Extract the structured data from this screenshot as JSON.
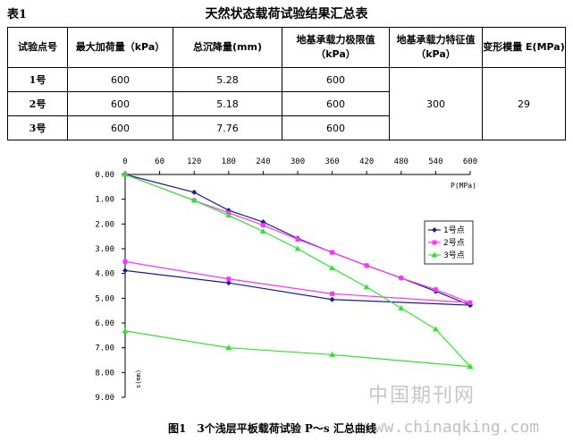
{
  "table": {
    "label": "表1",
    "title": "天然状态载荷试验结果汇总表",
    "headers": [
      "试验点号",
      "最大加荷量（kPa）",
      "总沉降量(mm)",
      "地基承载力极限值（kPa）",
      "地基承载力特征值（kPa）",
      "变形模量 E(MPa)"
    ],
    "rows": [
      {
        "point": "1号",
        "max_load": "600",
        "settlement": "5.28",
        "ultimate": "600"
      },
      {
        "point": "2号",
        "max_load": "600",
        "settlement": "5.18",
        "ultimate": "600"
      },
      {
        "point": "3号",
        "max_load": "600",
        "settlement": "7.76",
        "ultimate": "600"
      }
    ],
    "characteristic_value": "300",
    "deformation_modulus": "29"
  },
  "figure_caption": "图1　3个浅层平板载荷试验 P～s 汇总曲线",
  "watermark": {
    "text": "中国期刊网",
    "url": "www.chinaqking.com"
  },
  "chart_data": {
    "type": "line",
    "xlabel": "P(MPa)",
    "ylabel": "s(mm)",
    "x_axis_position": "top",
    "y_inverted": true,
    "xlim": [
      0,
      600
    ],
    "ylim": [
      0,
      9
    ],
    "xticks": [
      0,
      60,
      120,
      180,
      240,
      300,
      360,
      420,
      480,
      540,
      600
    ],
    "yticks": [
      "0.00",
      "1.00",
      "2.00",
      "3.00",
      "4.00",
      "5.00",
      "6.00",
      "7.00",
      "8.00",
      "9.00"
    ],
    "legend_position": "right",
    "series": [
      {
        "name": "1号点",
        "color": "#1c1c8c",
        "marker": "diamond",
        "loading": [
          [
            0,
            0
          ],
          [
            120,
            0.72
          ],
          [
            180,
            1.45
          ],
          [
            240,
            1.92
          ],
          [
            300,
            2.58
          ],
          [
            360,
            3.15
          ],
          [
            420,
            3.68
          ],
          [
            480,
            4.18
          ],
          [
            540,
            4.72
          ],
          [
            600,
            5.28
          ]
        ],
        "unloading": [
          [
            600,
            5.28
          ],
          [
            360,
            5.05
          ],
          [
            180,
            4.38
          ],
          [
            0,
            3.88
          ]
        ]
      },
      {
        "name": "2号点",
        "color": "#ff33ff",
        "marker": "square",
        "loading": [
          [
            0,
            0
          ],
          [
            120,
            1.05
          ],
          [
            180,
            1.55
          ],
          [
            240,
            2.05
          ],
          [
            300,
            2.62
          ],
          [
            360,
            3.15
          ],
          [
            420,
            3.68
          ],
          [
            480,
            4.18
          ],
          [
            540,
            4.65
          ],
          [
            600,
            5.18
          ]
        ],
        "unloading": [
          [
            600,
            5.18
          ],
          [
            360,
            4.82
          ],
          [
            180,
            4.22
          ],
          [
            0,
            3.52
          ]
        ]
      },
      {
        "name": "3号点",
        "color": "#2ee62e",
        "marker": "triangle",
        "loading": [
          [
            0,
            0
          ],
          [
            120,
            1.05
          ],
          [
            180,
            1.65
          ],
          [
            240,
            2.3
          ],
          [
            300,
            3.0
          ],
          [
            360,
            3.78
          ],
          [
            420,
            4.55
          ],
          [
            480,
            5.4
          ],
          [
            540,
            6.25
          ],
          [
            600,
            7.76
          ]
        ],
        "unloading": [
          [
            600,
            7.76
          ],
          [
            360,
            7.28
          ],
          [
            180,
            7.0
          ],
          [
            0,
            6.32
          ]
        ]
      }
    ]
  }
}
